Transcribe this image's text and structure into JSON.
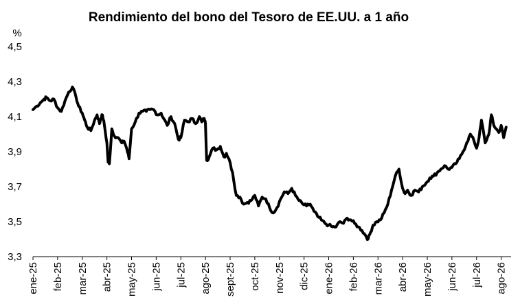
{
  "chart_data": {
    "type": "line",
    "title": "Rendimiento del bono del Tesoro de EE.UU. a 1 año",
    "ylabel": "%",
    "xlabel": "",
    "ylim": [
      3.3,
      4.5
    ],
    "yticks": [
      "4,5",
      "4,3",
      "4,1",
      "3,9",
      "3,7",
      "3,5",
      "3,3"
    ],
    "categories": [
      "ene-25",
      "feb-25",
      "mar-25",
      "abr-25",
      "may-25",
      "jun-25",
      "jul-25",
      "ago-25",
      "sept-25",
      "oct-25",
      "nov-25",
      "dic-25",
      "ene-26",
      "feb-26",
      "mar-26",
      "abr-26",
      "may-26",
      "jun-26",
      "jul-26",
      "ago-26"
    ],
    "grid": false,
    "legend": "none",
    "series": [
      {
        "color": "#000000",
        "x": [
          0,
          0.15,
          0.3,
          0.45,
          0.55,
          0.7,
          0.85,
          1.0,
          1.15,
          1.3,
          1.45,
          1.6,
          1.75,
          1.85,
          2.0,
          2.1,
          2.2,
          2.35,
          2.5,
          2.6,
          2.7,
          2.75,
          2.82,
          2.9,
          3.0,
          3.05,
          3.1,
          3.2,
          3.3,
          3.45,
          3.6,
          3.7,
          3.8,
          3.9,
          4.0,
          4.15,
          4.3,
          4.45,
          4.6,
          4.75,
          4.9,
          5.05,
          5.2,
          5.3,
          5.45,
          5.6,
          5.75,
          5.9,
          6.0,
          6.15,
          6.3,
          6.45,
          6.6,
          6.75,
          6.85,
          6.95,
          7.0,
          7.05,
          7.15,
          7.3,
          7.45,
          7.6,
          7.75,
          7.85,
          7.95,
          8.1,
          8.25,
          8.4,
          8.55,
          8.7,
          8.85,
          9.0,
          9.15,
          9.3,
          9.45,
          9.6,
          9.75,
          9.9,
          10.05,
          10.2,
          10.35,
          10.5,
          10.65,
          10.8,
          10.95,
          11.1,
          11.25,
          11.4,
          11.55,
          11.7,
          11.85,
          12.0,
          12.15,
          12.3,
          12.45,
          12.6,
          12.75,
          12.9,
          13.05,
          13.2,
          13.35,
          13.5,
          13.6,
          13.7,
          13.8,
          13.95,
          14.1,
          14.25,
          14.4,
          14.55,
          14.7,
          14.85,
          15.0,
          15.1,
          15.2,
          15.35,
          15.5,
          15.65,
          15.8,
          15.95,
          16.1,
          16.25,
          16.4,
          16.55,
          16.7,
          16.85,
          17.0,
          17.15,
          17.3,
          17.45,
          17.6,
          17.75,
          17.9,
          18.0,
          18.1,
          18.2,
          18.35,
          18.5,
          18.6,
          18.7,
          18.8,
          18.9,
          19.0,
          19.1,
          19.2
        ],
        "values": [
          4.14,
          4.16,
          4.18,
          4.2,
          4.21,
          4.19,
          4.2,
          4.15,
          4.13,
          4.19,
          4.24,
          4.27,
          4.21,
          4.16,
          4.12,
          4.08,
          4.04,
          4.02,
          4.08,
          4.11,
          4.06,
          4.09,
          4.11,
          4.05,
          3.95,
          3.84,
          3.83,
          4.03,
          3.99,
          3.98,
          3.95,
          3.96,
          3.92,
          3.86,
          4.03,
          4.07,
          4.12,
          4.13,
          4.13,
          4.14,
          4.14,
          4.11,
          4.12,
          4.09,
          4.05,
          4.1,
          4.06,
          3.97,
          3.98,
          4.08,
          4.07,
          4.09,
          4.06,
          4.1,
          4.07,
          4.09,
          4.06,
          3.85,
          3.87,
          3.92,
          3.91,
          3.93,
          3.87,
          3.89,
          3.86,
          3.78,
          3.65,
          3.64,
          3.6,
          3.61,
          3.62,
          3.65,
          3.59,
          3.64,
          3.63,
          3.58,
          3.55,
          3.58,
          3.63,
          3.67,
          3.66,
          3.69,
          3.65,
          3.62,
          3.6,
          3.59,
          3.6,
          3.56,
          3.53,
          3.51,
          3.49,
          3.48,
          3.47,
          3.47,
          3.5,
          3.49,
          3.52,
          3.51,
          3.49,
          3.47,
          3.45,
          3.42,
          3.4,
          3.44,
          3.48,
          3.5,
          3.51,
          3.55,
          3.6,
          3.68,
          3.76,
          3.8,
          3.69,
          3.66,
          3.68,
          3.65,
          3.68,
          3.67,
          3.7,
          3.72,
          3.75,
          3.76,
          3.78,
          3.8,
          3.82,
          3.8,
          3.81,
          3.83,
          3.86,
          3.9,
          3.95,
          4.0,
          3.96,
          3.92,
          3.98,
          4.08,
          3.95,
          4.0,
          4.11,
          4.05,
          4.03,
          4.01,
          4.05,
          3.98,
          4.04
        ]
      }
    ]
  }
}
